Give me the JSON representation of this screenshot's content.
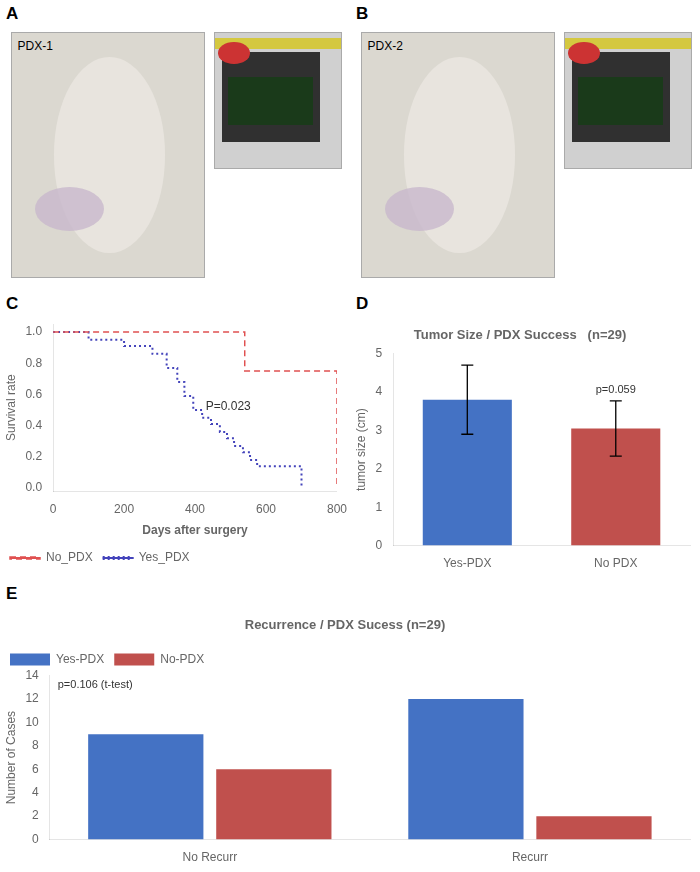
{
  "chart_data": [
    {
      "type": "illustration",
      "panel": "A",
      "annotations": [
        {
          "text": "PDX-1"
        }
      ]
    },
    {
      "type": "illustration",
      "panel": "B",
      "annotations": [
        {
          "text": "PDX-2"
        }
      ]
    },
    {
      "type": "line",
      "panel": "C",
      "x_label": "Days after surgery",
      "y_label": "Survival rate",
      "series": [
        {
          "name": "No_PDX",
          "color": "#e05050",
          "line_style": "dashed",
          "x": [
            0,
            540,
            540,
            800,
            800
          ],
          "values": [
            1.0,
            1.0,
            0.75,
            0.75,
            0.0
          ]
        },
        {
          "name": "Yes_PDX",
          "color": "#4444bb",
          "line_style": "dotted",
          "x": [
            0,
            100,
            100,
            200,
            200,
            280,
            280,
            320,
            320,
            350,
            350,
            370,
            370,
            395,
            395,
            420,
            420,
            445,
            445,
            470,
            470,
            490,
            490,
            510,
            510,
            535,
            535,
            555,
            555,
            575,
            575,
            700,
            700
          ],
          "values": [
            1.0,
            1.0,
            0.95,
            0.95,
            0.91,
            0.91,
            0.86,
            0.86,
            0.77,
            0.77,
            0.68,
            0.68,
            0.59,
            0.59,
            0.5,
            0.5,
            0.45,
            0.45,
            0.41,
            0.41,
            0.36,
            0.36,
            0.32,
            0.32,
            0.27,
            0.27,
            0.23,
            0.23,
            0.18,
            0.18,
            0.14,
            0.14,
            0.0
          ]
        }
      ],
      "xlim": [
        0,
        800
      ],
      "xticks": [
        0,
        200,
        400,
        600,
        800
      ],
      "ylim": [
        -0.02,
        1.05
      ],
      "yticks": [
        {
          "value": 0.0,
          "label": "0.0"
        },
        0.2,
        0.4,
        0.6,
        0.8,
        {
          "value": 1.0,
          "label": "1.0"
        }
      ],
      "annotations": [
        {
          "text": "P=0.023",
          "x": 430,
          "y": 0.48
        }
      ],
      "legend": "lower left",
      "grid": false
    },
    {
      "type": "bar",
      "panel": "D",
      "title": "Tumor Size / PDX Success   (n=29)",
      "y_label": "tumor size (cm)",
      "categories": [
        "Yes-PDX",
        "No PDX"
      ],
      "values": [
        3.8,
        3.05
      ],
      "errors": [
        0.9,
        0.72
      ],
      "colors": [
        "#4472c4",
        "#c0504d"
      ],
      "ylim": [
        0,
        5
      ],
      "yticks": [
        0,
        1,
        2,
        3,
        4,
        5
      ],
      "annotations": [
        {
          "text": "p=0.059",
          "x": "No PDX"
        }
      ],
      "grid": false
    },
    {
      "type": "bar",
      "panel": "E",
      "title": "Recurrence / PDX Sucess (n=29)",
      "y_label": "Number of Cases",
      "categories": [
        "No Recurr",
        "Recurr"
      ],
      "series": [
        {
          "name": "Yes-PDX",
          "color": "#4472c4",
          "values": [
            9,
            12
          ]
        },
        {
          "name": "No-PDX",
          "color": "#c0504d",
          "values": [
            6,
            2
          ]
        }
      ],
      "ylim": [
        0,
        14
      ],
      "yticks": [
        0,
        2,
        4,
        6,
        8,
        10,
        12,
        14
      ],
      "legend": "upper left",
      "annotations": [
        {
          "text": "p=0.106 (t-test)"
        }
      ],
      "grid": false
    }
  ]
}
